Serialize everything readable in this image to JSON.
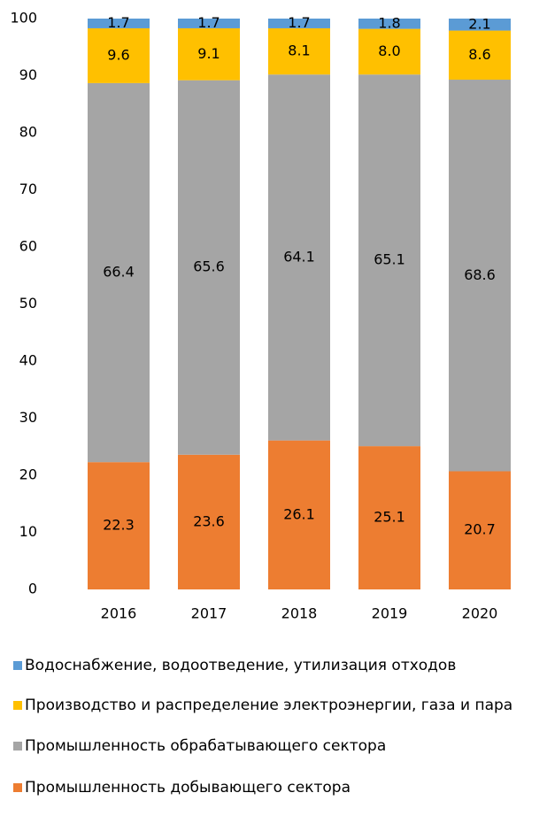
{
  "chart_data": {
    "type": "stacked_bar",
    "categories": [
      "2016",
      "2017",
      "2018",
      "2019",
      "2020"
    ],
    "series": [
      {
        "name": "Промышленность добывающего сектора",
        "color": "#ed7d31",
        "values": [
          22.3,
          23.6,
          26.1,
          25.1,
          20.7
        ],
        "value_labels": [
          "22.3",
          "23.6",
          "26.1",
          "25.1",
          "20.7"
        ]
      },
      {
        "name": "Промышленность обрабатывающего сектора",
        "color": "#a5a5a5",
        "values": [
          66.4,
          65.6,
          64.1,
          65.1,
          68.6
        ],
        "value_labels": [
          "66.4",
          "65.6",
          "64.1",
          "65.1",
          "68.6"
        ]
      },
      {
        "name": "Производство и распределение электроэнергии, газа и пара",
        "color": "#ffc000",
        "values": [
          9.6,
          9.1,
          8.1,
          8.0,
          8.6
        ],
        "value_labels": [
          "9.6",
          "9.1",
          "8.1",
          "8.0",
          "8.6"
        ]
      },
      {
        "name": "Водоснабжение, водоотведение, утилизация отходов",
        "color": "#5b9bd5",
        "values": [
          1.7,
          1.7,
          1.7,
          1.8,
          2.1
        ],
        "value_labels": [
          "1.7",
          "1.7",
          "1.7",
          "1.8",
          "2.1"
        ]
      }
    ],
    "ylim": [
      0,
      100
    ],
    "yticks": [
      0,
      10,
      20,
      30,
      40,
      50,
      60,
      70,
      80,
      90,
      100
    ],
    "grid": false
  }
}
